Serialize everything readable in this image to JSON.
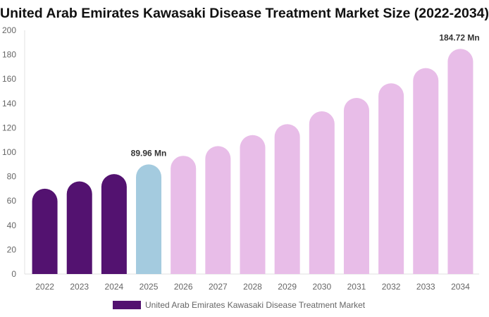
{
  "chart_data": {
    "type": "bar",
    "title": "United Arab Emirates Kawasaki Disease Treatment Market Size (2022-2034)",
    "categories": [
      "2022",
      "2023",
      "2024",
      "2025",
      "2026",
      "2027",
      "2028",
      "2029",
      "2030",
      "2031",
      "2032",
      "2033",
      "2034"
    ],
    "series": [
      {
        "name": "United Arab Emirates Kawasaki Disease Treatment Market",
        "values": [
          70,
          76,
          82,
          89.96,
          97,
          105,
          114,
          123,
          133.5,
          144.5,
          156.5,
          169,
          184.72
        ]
      }
    ],
    "data_labels": {
      "2025": "89.96 Mn",
      "2034": "184.72 Mn"
    },
    "ylim": [
      0,
      200
    ],
    "yticks": [
      0,
      20,
      40,
      60,
      80,
      100,
      120,
      140,
      160,
      180,
      200
    ],
    "grid": false,
    "legend_position": "bottom",
    "colors": {
      "historical": "#531270",
      "current": "#a4cbdf",
      "forecast": "#e8bde8"
    }
  }
}
